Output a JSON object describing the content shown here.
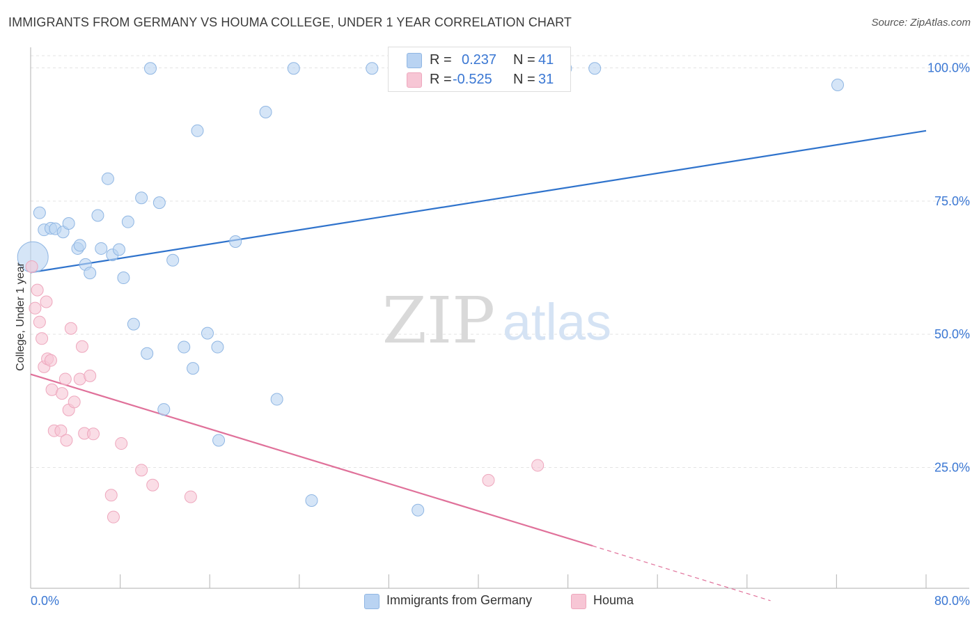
{
  "title": "IMMIGRANTS FROM GERMANY VS HOUMA COLLEGE, UNDER 1 YEAR CORRELATION CHART",
  "source": "Source: ZipAtlas.com",
  "watermark": {
    "zip": "ZIP",
    "atlas": "atlas"
  },
  "colors": {
    "blue_fill": "#b9d3f2",
    "blue_stroke": "#8fb6e3",
    "blue_line": "#2f73cc",
    "pink_fill": "#f7c6d5",
    "pink_stroke": "#eea7bd",
    "pink_line": "#e0719a",
    "axis_label": "#3a77d3",
    "grid": "#e3e3e3"
  },
  "legend": {
    "rows": [
      {
        "r_label": "R =",
        "r_value": "0.237",
        "n_label": "N =",
        "n_value": "41"
      },
      {
        "r_label": "R =",
        "r_value": "-0.525",
        "n_label": "N =",
        "n_value": "31"
      }
    ]
  },
  "bottom_legend": [
    {
      "label": "Immigrants from Germany"
    },
    {
      "label": "Houma"
    }
  ],
  "chart_data": {
    "type": "scatter",
    "title": "IMMIGRANTS FROM GERMANY VS HOUMA COLLEGE, UNDER 1 YEAR CORRELATION CHART",
    "xlabel": "",
    "ylabel": "College, Under 1 year",
    "xlim": [
      0,
      80
    ],
    "ylim": [
      0,
      105
    ],
    "x_tick_labels": [
      "0.0%",
      "80.0%"
    ],
    "y_ticks": [
      25,
      50,
      75,
      100
    ],
    "y_tick_labels": [
      "25.0%",
      "50.0%",
      "75.0%",
      "100.0%"
    ],
    "legend_position": "top-center",
    "series": [
      {
        "name": "Immigrants from Germany",
        "R": 0.237,
        "N": 41,
        "trend": {
          "x": [
            0,
            80
          ],
          "y": [
            61.6,
            88.2
          ],
          "dashed_from_x": null
        },
        "points": [
          {
            "x": 0.2,
            "y": 64.5,
            "big": true
          },
          {
            "x": 0.8,
            "y": 72.8
          },
          {
            "x": 1.2,
            "y": 69.6
          },
          {
            "x": 1.8,
            "y": 69.9
          },
          {
            "x": 2.2,
            "y": 69.8
          },
          {
            "x": 2.9,
            "y": 69.2
          },
          {
            "x": 3.4,
            "y": 70.8
          },
          {
            "x": 4.2,
            "y": 66.1
          },
          {
            "x": 4.4,
            "y": 66.7
          },
          {
            "x": 4.9,
            "y": 63.1
          },
          {
            "x": 5.3,
            "y": 61.5
          },
          {
            "x": 6.0,
            "y": 72.3
          },
          {
            "x": 6.3,
            "y": 66.1
          },
          {
            "x": 6.9,
            "y": 79.2
          },
          {
            "x": 7.3,
            "y": 64.9
          },
          {
            "x": 7.9,
            "y": 65.9
          },
          {
            "x": 8.3,
            "y": 60.6
          },
          {
            "x": 8.7,
            "y": 71.1
          },
          {
            "x": 9.2,
            "y": 51.9
          },
          {
            "x": 9.9,
            "y": 75.6
          },
          {
            "x": 10.4,
            "y": 46.4
          },
          {
            "x": 10.7,
            "y": 99.9
          },
          {
            "x": 11.5,
            "y": 74.7
          },
          {
            "x": 11.9,
            "y": 35.9
          },
          {
            "x": 12.7,
            "y": 63.9
          },
          {
            "x": 13.7,
            "y": 47.6
          },
          {
            "x": 14.5,
            "y": 43.6
          },
          {
            "x": 14.9,
            "y": 88.2
          },
          {
            "x": 15.8,
            "y": 50.2
          },
          {
            "x": 16.7,
            "y": 47.6
          },
          {
            "x": 16.8,
            "y": 30.1
          },
          {
            "x": 18.3,
            "y": 67.4
          },
          {
            "x": 21.0,
            "y": 91.7
          },
          {
            "x": 22.0,
            "y": 37.8
          },
          {
            "x": 23.5,
            "y": 99.9
          },
          {
            "x": 25.1,
            "y": 18.8
          },
          {
            "x": 30.5,
            "y": 99.9
          },
          {
            "x": 34.6,
            "y": 17.0
          },
          {
            "x": 47.8,
            "y": 99.9
          },
          {
            "x": 50.4,
            "y": 99.9
          },
          {
            "x": 72.1,
            "y": 96.8
          }
        ]
      },
      {
        "name": "Houma",
        "R": -0.525,
        "N": 31,
        "trend": {
          "x": [
            0,
            50.2,
            66.1
          ],
          "y": [
            42.5,
            10.3,
            0
          ],
          "dashed_from_x": 50.2
        },
        "points": [
          {
            "x": 0.1,
            "y": 62.7
          },
          {
            "x": 0.4,
            "y": 54.9
          },
          {
            "x": 0.6,
            "y": 58.3
          },
          {
            "x": 0.8,
            "y": 52.3
          },
          {
            "x": 1.0,
            "y": 49.2
          },
          {
            "x": 1.2,
            "y": 43.9
          },
          {
            "x": 1.4,
            "y": 56.1
          },
          {
            "x": 1.5,
            "y": 45.4
          },
          {
            "x": 1.8,
            "y": 45.1
          },
          {
            "x": 1.9,
            "y": 39.6
          },
          {
            "x": 2.1,
            "y": 31.9
          },
          {
            "x": 2.7,
            "y": 31.9
          },
          {
            "x": 2.8,
            "y": 38.9
          },
          {
            "x": 3.1,
            "y": 41.6
          },
          {
            "x": 3.2,
            "y": 30.1
          },
          {
            "x": 3.4,
            "y": 35.8
          },
          {
            "x": 3.6,
            "y": 51.1
          },
          {
            "x": 3.9,
            "y": 37.3
          },
          {
            "x": 4.4,
            "y": 41.6
          },
          {
            "x": 4.6,
            "y": 47.7
          },
          {
            "x": 4.8,
            "y": 31.4
          },
          {
            "x": 5.3,
            "y": 42.2
          },
          {
            "x": 5.6,
            "y": 31.3
          },
          {
            "x": 7.2,
            "y": 19.8
          },
          {
            "x": 7.4,
            "y": 15.7
          },
          {
            "x": 8.1,
            "y": 29.5
          },
          {
            "x": 9.9,
            "y": 24.5
          },
          {
            "x": 10.9,
            "y": 21.7
          },
          {
            "x": 14.3,
            "y": 19.5
          },
          {
            "x": 40.9,
            "y": 22.6
          },
          {
            "x": 45.3,
            "y": 25.4
          }
        ]
      }
    ]
  }
}
